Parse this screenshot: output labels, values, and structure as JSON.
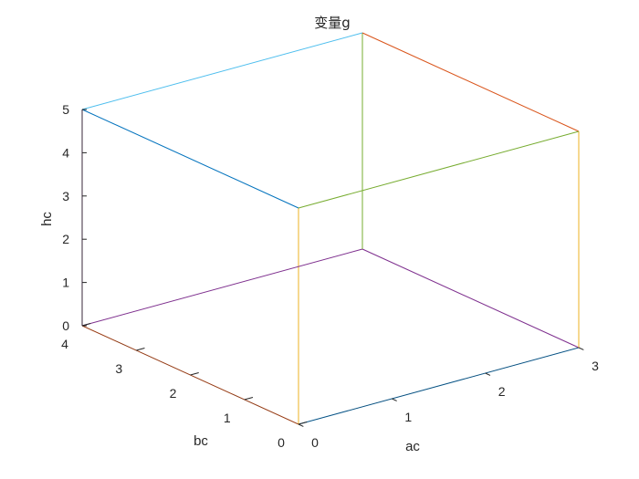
{
  "chart_data": {
    "type": "line3d",
    "title": "变量g",
    "xlabel": "ac",
    "ylabel": "bc",
    "zlabel": "hc",
    "xlim": [
      0,
      3
    ],
    "ylim": [
      0,
      4
    ],
    "zlim": [
      0,
      5
    ],
    "x_ticks": [
      "0",
      "1",
      "2",
      "3"
    ],
    "y_ticks": [
      "0",
      "1",
      "2",
      "3",
      "4"
    ],
    "z_ticks": [
      "0",
      "1",
      "2",
      "3",
      "4",
      "5"
    ],
    "grid": false,
    "series": [
      {
        "color": "#0072BD",
        "points": [
          [
            0,
            0,
            0
          ],
          [
            3,
            0,
            0
          ]
        ]
      },
      {
        "color": "#D95319",
        "points": [
          [
            0,
            0,
            0
          ],
          [
            0,
            4,
            0
          ]
        ]
      },
      {
        "color": "#EDB120",
        "points": [
          [
            0,
            0,
            0
          ],
          [
            0,
            0,
            5
          ]
        ]
      },
      {
        "color": "#7E2F8E",
        "points": [
          [
            3,
            4,
            0
          ],
          [
            3,
            0,
            0
          ]
        ]
      },
      {
        "color": "#7E2F8E",
        "points": [
          [
            3,
            4,
            0
          ],
          [
            0,
            4,
            0
          ]
        ]
      },
      {
        "color": "#77AC30",
        "points": [
          [
            3,
            4,
            0
          ],
          [
            3,
            4,
            5
          ]
        ]
      },
      {
        "color": "#4DBEEE",
        "points": [
          [
            0,
            4,
            5
          ],
          [
            3,
            4,
            5
          ]
        ]
      },
      {
        "color": "#0072BD",
        "points": [
          [
            0,
            4,
            5
          ],
          [
            0,
            0,
            5
          ]
        ]
      },
      {
        "color": "#7E2F8E",
        "points": [
          [
            0,
            4,
            5
          ],
          [
            0,
            4,
            0
          ]
        ]
      },
      {
        "color": "#EDB120",
        "points": [
          [
            3,
            0,
            5
          ],
          [
            3,
            0,
            0
          ]
        ]
      },
      {
        "color": "#D95319",
        "points": [
          [
            3,
            0,
            5
          ],
          [
            3,
            4,
            5
          ]
        ]
      },
      {
        "color": "#77AC30",
        "points": [
          [
            3,
            0,
            5
          ],
          [
            0,
            0,
            5
          ]
        ]
      }
    ]
  }
}
